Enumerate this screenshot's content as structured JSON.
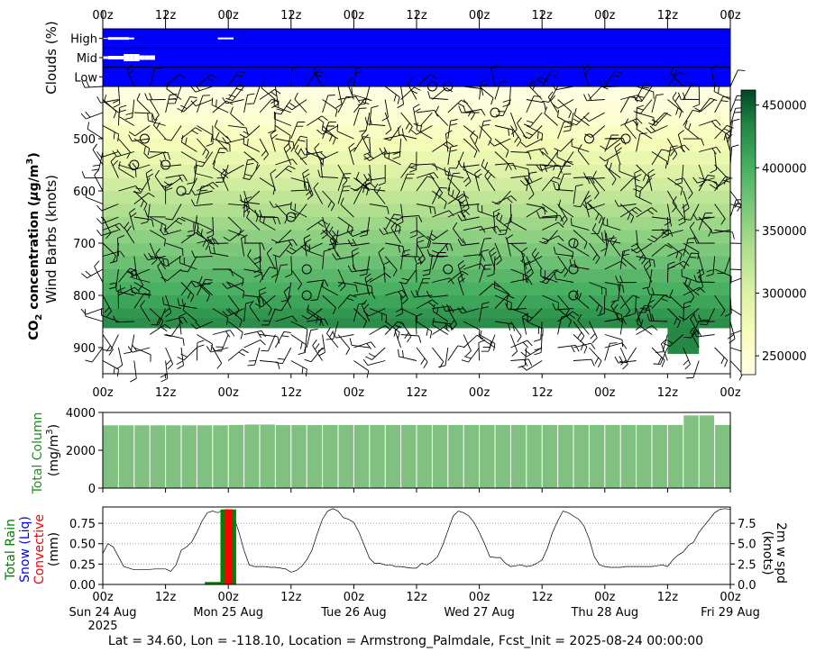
{
  "footer": "Lat = 34.60, Lon = -118.10, Location = Armstrong_Palmdale, Fcst_Init = 2025-08-24 00:00:00",
  "time_ticks": [
    "00z",
    "12z",
    "00z",
    "12z",
    "00z",
    "12z",
    "00z",
    "12z",
    "00z",
    "12z",
    "00z"
  ],
  "date_labels": [
    "Sun 24 Aug\n2025",
    "Mon 25 Aug",
    "Tue 26 Aug",
    "Wed 27 Aug",
    "Thu 28 Aug",
    "Fri 29 Aug"
  ],
  "colors": {
    "cloud_bg": "#0000ff",
    "co2_low": "#ffffe5",
    "co2_high": "#004529",
    "column_bar": "#80c080",
    "rain": "#008000",
    "snow": "#0000ff",
    "convective": "#ff0000"
  },
  "chart_data": [
    {
      "type": "heatmap",
      "name": "clouds",
      "ylabel": "Clouds (%)",
      "rows": [
        "High",
        "Mid",
        "Low"
      ],
      "x_hours_range": [
        0,
        120
      ],
      "cover": {
        "High": [
          [
            0,
            1
          ],
          [
            1,
            3
          ],
          [
            2,
            3
          ],
          [
            3,
            3
          ],
          [
            4,
            3
          ],
          [
            5,
            2
          ],
          [
            22,
            2
          ],
          [
            23,
            2
          ],
          [
            24,
            2
          ]
        ],
        "Mid": [
          [
            0,
            3
          ],
          [
            1,
            4
          ],
          [
            2,
            4
          ],
          [
            3,
            4
          ],
          [
            4,
            8
          ],
          [
            5,
            8
          ],
          [
            6,
            8
          ],
          [
            7,
            5
          ],
          [
            8,
            5
          ],
          [
            9,
            5
          ]
        ],
        "Low": []
      }
    },
    {
      "type": "heatmap",
      "name": "co2",
      "ylabel": "CO$_2$ concentration ($\\mu$g/m$^3$)",
      "ylabel_parts": {
        "pre": "CO",
        "sub": "2",
        "mid": " concentration (",
        "mu": "μ",
        "unit": "g/m",
        "sup": "3",
        "post": ")"
      },
      "ylabel2": "Wind Barbs (knots)",
      "y_ticks": [
        500,
        600,
        700,
        800,
        900
      ],
      "y_range": [
        950,
        400
      ],
      "x_hours_range": [
        0,
        120
      ],
      "colorbar": {
        "ticks": [
          250000,
          300000,
          350000,
          400000,
          450000
        ],
        "range": [
          235000,
          462000
        ]
      },
      "levels": [
        {
          "p": 412.5,
          "v": 238000
        },
        {
          "p": 437.5,
          "v": 244000
        },
        {
          "p": 462.5,
          "v": 252000
        },
        {
          "p": 487.5,
          "v": 262000
        },
        {
          "p": 512.5,
          "v": 272000
        },
        {
          "p": 537.5,
          "v": 284000
        },
        {
          "p": 562.5,
          "v": 296000
        },
        {
          "p": 587.5,
          "v": 310000
        },
        {
          "p": 612.5,
          "v": 322000
        },
        {
          "p": 637.5,
          "v": 334000
        },
        {
          "p": 662.5,
          "v": 346000
        },
        {
          "p": 687.5,
          "v": 357000
        },
        {
          "p": 712.5,
          "v": 368000
        },
        {
          "p": 737.5,
          "v": 379000
        },
        {
          "p": 762.5,
          "v": 390000
        },
        {
          "p": 787.5,
          "v": 400000
        },
        {
          "p": 812.5,
          "v": 410000
        },
        {
          "p": 837.5,
          "v": 420000
        },
        {
          "p": 850.0,
          "v": 428000
        }
      ],
      "surface_p": 862,
      "extra_block": {
        "x_hours": [
          108,
          114
        ],
        "p": [
          862,
          912
        ],
        "v": 432000
      },
      "calm_points": [
        [
          8,
          500
        ],
        [
          6,
          550
        ],
        [
          12,
          550
        ],
        [
          15,
          600
        ],
        [
          36,
          650
        ],
        [
          39,
          750
        ],
        [
          39,
          800
        ],
        [
          63,
          400
        ],
        [
          66,
          400
        ],
        [
          66,
          750
        ],
        [
          75,
          450
        ],
        [
          93,
          500
        ],
        [
          100,
          500
        ],
        [
          90,
          700
        ],
        [
          90,
          750
        ],
        [
          90,
          800
        ]
      ]
    },
    {
      "type": "bar",
      "name": "total_column",
      "ylabel": "Total Column",
      "ylabel_unit": "(mg/m",
      "ylabel_unit_sup": "3",
      "ylabel_unit_post": ")",
      "y_ticks": [
        0,
        2000,
        4000
      ],
      "ylim": [
        0,
        4000
      ],
      "bar_width_hours": 3,
      "values": [
        3320,
        3320,
        3320,
        3320,
        3320,
        3320,
        3320,
        3320,
        3340,
        3360,
        3360,
        3330,
        3330,
        3330,
        3340,
        3340,
        3340,
        3340,
        3340,
        3340,
        3340,
        3340,
        3340,
        3340,
        3340,
        3340,
        3340,
        3340,
        3340,
        3340,
        3340,
        3340,
        3340,
        3340,
        3340,
        3340,
        3340,
        3840,
        3840,
        3340
      ]
    },
    {
      "type": "bar",
      "name": "precip",
      "ylabel_lines": [
        "Total Rain",
        "Snow (Liq)",
        "Convective",
        "(mm)"
      ],
      "y_ticks": [
        "0.00",
        "0.25",
        "0.50",
        "0.75"
      ],
      "ylim": [
        0,
        0.95
      ],
      "bars": [
        {
          "x_hours": 21,
          "total": 0.03,
          "conv": 0
        },
        {
          "x_hours": 24,
          "total": 0.92,
          "conv": 0.92
        }
      ],
      "wind_ylabel": "2m w spd",
      "wind_ylabel2": "(knots)",
      "wind_y_ticks": [
        "0.0",
        "2.5",
        "5.0",
        "7.5"
      ],
      "wind_ylim": [
        0,
        9.5
      ],
      "wind": {
        "x": [
          0,
          1,
          2,
          3,
          4,
          6,
          8,
          10,
          12,
          13,
          14,
          15,
          16,
          17,
          18,
          19,
          20,
          21,
          22,
          23,
          24,
          25,
          26,
          27,
          28,
          29,
          30,
          31,
          32,
          33,
          34,
          35,
          36,
          37,
          38,
          39,
          40,
          41,
          42,
          43,
          44,
          45,
          46,
          47,
          48,
          49,
          50,
          51,
          52,
          53,
          54,
          55,
          56,
          57,
          58,
          59,
          60,
          61,
          62,
          63,
          64,
          65,
          66,
          67,
          68,
          69,
          70,
          71,
          72,
          73,
          74,
          75,
          76,
          77,
          78,
          79,
          80,
          81,
          82,
          83,
          84,
          85,
          86,
          87,
          88,
          89,
          90,
          91,
          92,
          93,
          94,
          95,
          96,
          97,
          98,
          99,
          100,
          101,
          102,
          103,
          104,
          105,
          106,
          107,
          108,
          109,
          110,
          111,
          112,
          113,
          114,
          115,
          116,
          117,
          118,
          119,
          120
        ],
        "y": [
          3.8,
          5.0,
          4.6,
          3.4,
          2.2,
          1.8,
          1.8,
          1.9,
          1.9,
          1.6,
          2.4,
          4.2,
          4.6,
          5.2,
          6.4,
          7.8,
          8.8,
          9.0,
          8.8,
          9.1,
          9.2,
          8.4,
          6.5,
          4.2,
          2.4,
          2.2,
          2.2,
          2.2,
          2.1,
          2.1,
          2.0,
          1.9,
          1.5,
          1.7,
          2.2,
          3.0,
          4.2,
          6.2,
          8.0,
          9.0,
          9.3,
          9.0,
          8.2,
          8.0,
          7.6,
          6.4,
          4.8,
          3.2,
          2.6,
          2.6,
          2.4,
          2.4,
          2.2,
          2.2,
          2.1,
          2.0,
          2.0,
          2.6,
          2.4,
          2.8,
          3.4,
          4.8,
          6.6,
          8.4,
          9.0,
          8.8,
          8.4,
          7.6,
          6.4,
          5.0,
          3.4,
          3.3,
          3.3,
          2.6,
          2.2,
          2.3,
          2.4,
          2.2,
          2.3,
          2.6,
          3.0,
          4.4,
          6.4,
          7.8,
          9.0,
          8.8,
          8.4,
          8.0,
          7.2,
          5.6,
          3.4,
          2.4,
          2.2,
          2.1,
          2.1,
          2.1,
          2.2,
          2.2,
          2.2,
          2.2,
          2.2,
          2.2,
          2.3,
          2.4,
          2.2,
          3.0,
          3.6,
          4.0,
          4.8,
          5.2,
          6.4,
          7.2,
          8.0,
          8.8,
          9.2,
          9.3,
          9.2
        ]
      }
    }
  ]
}
